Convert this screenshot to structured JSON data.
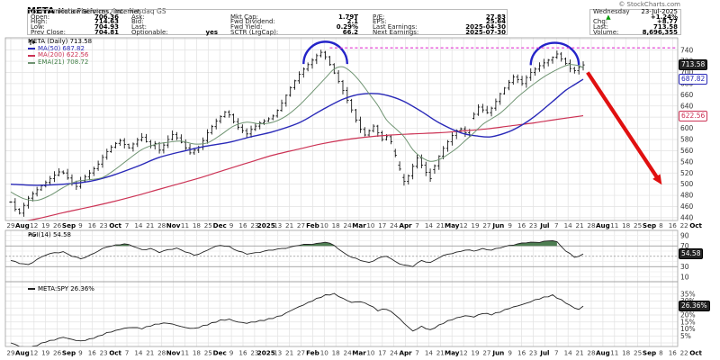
{
  "header": {
    "symbol": "META",
    "company": "Meta Platforms, Inc.",
    "exchange": "Nasdaq GS",
    "copyright": "© StockCharts.com",
    "sector": "Communication Services / Internet",
    "quote": {
      "rows": [
        [
          {
            "l": "Open:",
            "v": "706.36"
          },
          {
            "l": "Ask:",
            "v": ""
          },
          {
            "l": "Mkt Cap:",
            "v": "1.79T"
          },
          {
            "l": "P/E:",
            "v": "27.83"
          }
        ],
        [
          {
            "l": "High:",
            "v": "714.63"
          },
          {
            "l": "Bid:",
            "v": ""
          },
          {
            "l": "Fwd Dividend:",
            "v": "2.1"
          },
          {
            "l": "EPS:",
            "v": "25.64"
          }
        ],
        [
          {
            "l": "Low:",
            "v": "704.93"
          },
          {
            "l": "Last:",
            "v": ""
          },
          {
            "l": "Fwd Yield:",
            "v": "0.29%"
          },
          {
            "l": "Last Earnings:",
            "v": "2025-04-30"
          }
        ],
        [
          {
            "l": "Prev Close:",
            "v": "704.81"
          },
          {
            "l": "Optionable:",
            "v": "yes"
          },
          {
            "l": "SCTR (LrgCap):",
            "v": "66.2"
          },
          {
            "l": "Next Earnings:",
            "v": "2025-07-30"
          }
        ]
      ]
    },
    "right": {
      "day_label": "Wednesday",
      "date": "23-Jul-2025",
      "triangle": "▲",
      "change_pct": "+1.24%",
      "chg_label": "Chg:",
      "chg": "+8.77",
      "last_label": "Last:",
      "last": "713.58",
      "volume_label": "Volume:",
      "volume": "8,696,355"
    }
  },
  "legend": {
    "main": "META (Daily) 713.58",
    "ma50": "MA(50) 687.82",
    "ma200": "MA(200) 622.56",
    "ema21": "EMA(21) 708.72"
  },
  "panel_labels": {
    "rsi": "RSI(14) 54.58",
    "ratio": "META:SPY 26.36%"
  },
  "axis_boxes": {
    "last_price": "713.58",
    "ma50": "687.82",
    "ma200": "622.56",
    "rsi": "54.58",
    "ratio": "26.36%"
  },
  "colors": {
    "candle": "#000000",
    "ma50": "#2929b8",
    "ma200": "#cc3355",
    "ema21": "#6f9472",
    "arc": "#2424c8",
    "resistance_dashed": "#e030d0",
    "arrow": "#e01010",
    "rsi_line": "#222222",
    "rsi_fill": "#4e7e52",
    "ratio_line": "#222222",
    "grid": "#e2e2e2",
    "panel_border": "#a0a0a0",
    "up_triangle": "#089a08"
  },
  "chart_data": {
    "type": "candlestick",
    "symbol": "META",
    "timeframe": "Daily",
    "last": 713.58,
    "ylim": [
      435,
      762
    ],
    "price_ticks": [
      740,
      720,
      700,
      680,
      660,
      640,
      600,
      580,
      560,
      540,
      520,
      500,
      480,
      460,
      440
    ],
    "x_labels": [
      "29",
      "Aug",
      "12",
      "19",
      "26",
      "Sep",
      "9",
      "16",
      "23",
      "Oct",
      "7",
      "14",
      "21",
      "28",
      "Nov",
      "11",
      "18",
      "25",
      "Dec",
      "9",
      "16",
      "23",
      "2025",
      "13",
      "21",
      "27",
      "Feb",
      "10",
      "18",
      "24",
      "Mar",
      "10",
      "17",
      "24",
      "Apr",
      "7",
      "14",
      "21",
      "May",
      "12",
      "19",
      "27",
      "Jun",
      "9",
      "16",
      "23",
      "Jul",
      "7",
      "14",
      "21",
      "28",
      "Aug",
      "11",
      "18",
      "25",
      "Sep",
      "8",
      "16",
      "22",
      "Oct"
    ],
    "closes": [
      468,
      455,
      448,
      462,
      475,
      483,
      490,
      497,
      503,
      510,
      516,
      522,
      520,
      511,
      502,
      496,
      506,
      513,
      520,
      528,
      536,
      548,
      558,
      566,
      573,
      578,
      571,
      565,
      572,
      579,
      584,
      576,
      569,
      573,
      561,
      570,
      580,
      589,
      583,
      575,
      565,
      556,
      561,
      566,
      578,
      592,
      603,
      613,
      621,
      629,
      624,
      612,
      602,
      596,
      590,
      598,
      604,
      610,
      613,
      617,
      622,
      632,
      645,
      659,
      673,
      685,
      697,
      706,
      714,
      722,
      730,
      736,
      728,
      714,
      699,
      684,
      668,
      650,
      633,
      615,
      598,
      588,
      596,
      604,
      592,
      580,
      585,
      576,
      552,
      527,
      505,
      515,
      532,
      547,
      534,
      521,
      510,
      533,
      550,
      564,
      576,
      587,
      596,
      599,
      592,
      586,
      625,
      638,
      633,
      628,
      636,
      648,
      662,
      672,
      682,
      692,
      687,
      680,
      691,
      700,
      706,
      712,
      717,
      722,
      727,
      733,
      724,
      716,
      707,
      703,
      709,
      713.58
    ],
    "ma50": [
      [
        0,
        500
      ],
      [
        6,
        498
      ],
      [
        12,
        500
      ],
      [
        18,
        505
      ],
      [
        23,
        515
      ],
      [
        29,
        532
      ],
      [
        34,
        548
      ],
      [
        40,
        560
      ],
      [
        44,
        567
      ],
      [
        50,
        575
      ],
      [
        55,
        585
      ],
      [
        60,
        594
      ],
      [
        66,
        610
      ],
      [
        71,
        632
      ],
      [
        76,
        652
      ],
      [
        80,
        661
      ],
      [
        84,
        662
      ],
      [
        87,
        657
      ],
      [
        90,
        648
      ],
      [
        94,
        630
      ],
      [
        98,
        610
      ],
      [
        103,
        592
      ],
      [
        107,
        586
      ],
      [
        110,
        585
      ],
      [
        114,
        594
      ],
      [
        117,
        606
      ],
      [
        120,
        622
      ],
      [
        124,
        648
      ],
      [
        127,
        668
      ],
      [
        129,
        678
      ],
      [
        131,
        687.82
      ]
    ],
    "ma200": [
      [
        0,
        430
      ],
      [
        6,
        438
      ],
      [
        12,
        449
      ],
      [
        18,
        459
      ],
      [
        23,
        468
      ],
      [
        29,
        480
      ],
      [
        34,
        491
      ],
      [
        40,
        504
      ],
      [
        44,
        513
      ],
      [
        50,
        528
      ],
      [
        55,
        540
      ],
      [
        60,
        552
      ],
      [
        66,
        563
      ],
      [
        71,
        572
      ],
      [
        76,
        579
      ],
      [
        81,
        584
      ],
      [
        87,
        588
      ],
      [
        92,
        590
      ],
      [
        98,
        592
      ],
      [
        103,
        595
      ],
      [
        109,
        599
      ],
      [
        114,
        604
      ],
      [
        120,
        610
      ],
      [
        125,
        616
      ],
      [
        131,
        622.56
      ]
    ],
    "ema21": [
      [
        0,
        486
      ],
      [
        3,
        474
      ],
      [
        6,
        471
      ],
      [
        9,
        480
      ],
      [
        12,
        494
      ],
      [
        15,
        505
      ],
      [
        18,
        508
      ],
      [
        21,
        512
      ],
      [
        24,
        527
      ],
      [
        27,
        545
      ],
      [
        30,
        562
      ],
      [
        33,
        571
      ],
      [
        36,
        575
      ],
      [
        39,
        577
      ],
      [
        42,
        572
      ],
      [
        45,
        574
      ],
      [
        48,
        588
      ],
      [
        51,
        604
      ],
      [
        54,
        611
      ],
      [
        57,
        608
      ],
      [
        60,
        611
      ],
      [
        63,
        622
      ],
      [
        66,
        641
      ],
      [
        69,
        665
      ],
      [
        72,
        690
      ],
      [
        74,
        706
      ],
      [
        76,
        710
      ],
      [
        78,
        700
      ],
      [
        80,
        683
      ],
      [
        82,
        662
      ],
      [
        84,
        641
      ],
      [
        86,
        615
      ],
      [
        88,
        600
      ],
      [
        90,
        585
      ],
      [
        92,
        562
      ],
      [
        94,
        548
      ],
      [
        96,
        541
      ],
      [
        98,
        544
      ],
      [
        100,
        553
      ],
      [
        102,
        564
      ],
      [
        104,
        578
      ],
      [
        106,
        592
      ],
      [
        108,
        607
      ],
      [
        110,
        617
      ],
      [
        112,
        627
      ],
      [
        114,
        641
      ],
      [
        116,
        656
      ],
      [
        118,
        669
      ],
      [
        120,
        681
      ],
      [
        122,
        692
      ],
      [
        124,
        701
      ],
      [
        126,
        709
      ],
      [
        128,
        714
      ],
      [
        130,
        712
      ],
      [
        131,
        708.72
      ]
    ],
    "rsi": {
      "period": 14,
      "last": 54.58,
      "overbought": 70,
      "mid": 50,
      "oversold": 30,
      "ticks": [
        90,
        70,
        50,
        30,
        10
      ],
      "points": [
        [
          0,
          42
        ],
        [
          2,
          36
        ],
        [
          4,
          34
        ],
        [
          6,
          44
        ],
        [
          8,
          52
        ],
        [
          10,
          57
        ],
        [
          12,
          59
        ],
        [
          14,
          50
        ],
        [
          16,
          45
        ],
        [
          18,
          52
        ],
        [
          20,
          60
        ],
        [
          22,
          68
        ],
        [
          24,
          72
        ],
        [
          26,
          74
        ],
        [
          28,
          69
        ],
        [
          30,
          63
        ],
        [
          32,
          65
        ],
        [
          34,
          57
        ],
        [
          36,
          63
        ],
        [
          38,
          66
        ],
        [
          40,
          58
        ],
        [
          42,
          52
        ],
        [
          44,
          58
        ],
        [
          46,
          66
        ],
        [
          48,
          71
        ],
        [
          50,
          69
        ],
        [
          52,
          60
        ],
        [
          54,
          54
        ],
        [
          56,
          57
        ],
        [
          58,
          60
        ],
        [
          60,
          62
        ],
        [
          62,
          65
        ],
        [
          64,
          68
        ],
        [
          66,
          71
        ],
        [
          68,
          73
        ],
        [
          70,
          75
        ],
        [
          72,
          77
        ],
        [
          74,
          71
        ],
        [
          76,
          58
        ],
        [
          78,
          48
        ],
        [
          80,
          42
        ],
        [
          82,
          38
        ],
        [
          84,
          46
        ],
        [
          86,
          50
        ],
        [
          88,
          40
        ],
        [
          90,
          33
        ],
        [
          92,
          30
        ],
        [
          94,
          42
        ],
        [
          96,
          38
        ],
        [
          98,
          47
        ],
        [
          100,
          54
        ],
        [
          102,
          58
        ],
        [
          104,
          62
        ],
        [
          106,
          60
        ],
        [
          108,
          65
        ],
        [
          110,
          62
        ],
        [
          112,
          66
        ],
        [
          114,
          71
        ],
        [
          116,
          74
        ],
        [
          118,
          76
        ],
        [
          120,
          77
        ],
        [
          122,
          79
        ],
        [
          124,
          80
        ],
        [
          125,
          78
        ],
        [
          127,
          60
        ],
        [
          129,
          48
        ],
        [
          130,
          50
        ],
        [
          131,
          54.58
        ]
      ]
    },
    "ratio": {
      "name": "META:SPY",
      "last_pct": 26.36,
      "ticks_pct": [
        35,
        30,
        20,
        15,
        10,
        5
      ],
      "points": [
        [
          0,
          0
        ],
        [
          2,
          -2.5
        ],
        [
          4,
          -4
        ],
        [
          6,
          -2
        ],
        [
          8,
          0.5
        ],
        [
          10,
          2
        ],
        [
          12,
          4
        ],
        [
          14,
          2.5
        ],
        [
          16,
          1.5
        ],
        [
          18,
          3
        ],
        [
          20,
          5
        ],
        [
          22,
          7.5
        ],
        [
          24,
          9
        ],
        [
          26,
          10.5
        ],
        [
          28,
          11
        ],
        [
          30,
          10
        ],
        [
          32,
          12
        ],
        [
          34,
          13.5
        ],
        [
          36,
          14
        ],
        [
          38,
          12.5
        ],
        [
          40,
          11
        ],
        [
          42,
          10.5
        ],
        [
          44,
          12.5
        ],
        [
          46,
          14.5
        ],
        [
          48,
          16.5
        ],
        [
          50,
          17
        ],
        [
          52,
          15
        ],
        [
          54,
          14
        ],
        [
          56,
          15
        ],
        [
          58,
          16
        ],
        [
          60,
          17.5
        ],
        [
          62,
          19.5
        ],
        [
          64,
          23
        ],
        [
          66,
          26
        ],
        [
          68,
          29
        ],
        [
          70,
          32
        ],
        [
          72,
          34.5
        ],
        [
          74,
          35.5
        ],
        [
          76,
          32
        ],
        [
          78,
          29
        ],
        [
          80,
          29.5
        ],
        [
          82,
          27
        ],
        [
          84,
          23
        ],
        [
          86,
          24
        ],
        [
          88,
          20
        ],
        [
          90,
          14
        ],
        [
          92,
          8.5
        ],
        [
          94,
          12
        ],
        [
          96,
          9.5
        ],
        [
          98,
          13
        ],
        [
          100,
          16
        ],
        [
          102,
          18
        ],
        [
          104,
          19.5
        ],
        [
          106,
          18.5
        ],
        [
          108,
          21
        ],
        [
          110,
          20
        ],
        [
          112,
          22
        ],
        [
          114,
          24.5
        ],
        [
          116,
          26.5
        ],
        [
          118,
          28.5
        ],
        [
          120,
          31
        ],
        [
          122,
          33
        ],
        [
          124,
          34.5
        ],
        [
          126,
          31
        ],
        [
          128,
          27
        ],
        [
          129,
          25
        ],
        [
          130,
          24
        ],
        [
          131,
          26.36
        ]
      ]
    },
    "annotations": {
      "arc1": {
        "from_bar": 67,
        "to_bar": 77,
        "base_price": 715,
        "apex_price": 755
      },
      "arc2": {
        "from_bar": 119,
        "to_bar": 130,
        "base_price": 713,
        "apex_price": 753
      },
      "resistance": {
        "price": 744,
        "from_bar": 73
      },
      "arrow": {
        "x1_bar": 132,
        "price1": 700,
        "x2_bar": 149,
        "price2": 499
      }
    }
  }
}
